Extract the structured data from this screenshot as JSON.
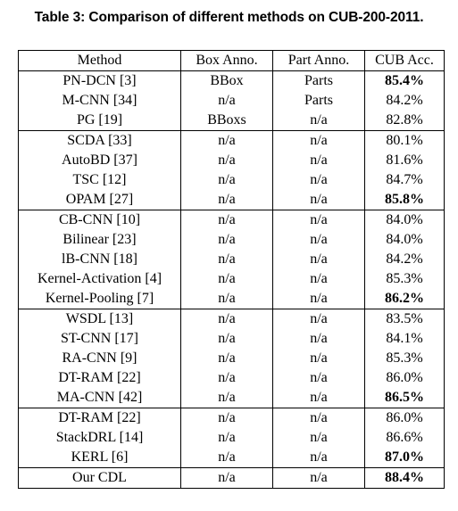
{
  "caption": "Table 3: Comparison of different methods on CUB-200-2011.",
  "headers": [
    "Method",
    "Box Anno.",
    "Part Anno.",
    "CUB Acc."
  ],
  "groups": [
    [
      {
        "method": "PN-DCN [3]",
        "box": "BBox",
        "part": "Parts",
        "acc": "85.4%",
        "best": true
      },
      {
        "method": "M-CNN [34]",
        "box": "n/a",
        "part": "Parts",
        "acc": "84.2%",
        "best": false
      },
      {
        "method": "PG [19]",
        "box": "BBoxs",
        "part": "n/a",
        "acc": "82.8%",
        "best": false
      }
    ],
    [
      {
        "method": "SCDA [33]",
        "box": "n/a",
        "part": "n/a",
        "acc": "80.1%",
        "best": false
      },
      {
        "method": "AutoBD [37]",
        "box": "n/a",
        "part": "n/a",
        "acc": "81.6%",
        "best": false
      },
      {
        "method": "TSC [12]",
        "box": "n/a",
        "part": "n/a",
        "acc": "84.7%",
        "best": false
      },
      {
        "method": "OPAM [27]",
        "box": "n/a",
        "part": "n/a",
        "acc": "85.8%",
        "best": true
      }
    ],
    [
      {
        "method": "CB-CNN [10]",
        "box": "n/a",
        "part": "n/a",
        "acc": "84.0%",
        "best": false
      },
      {
        "method": "Bilinear [23]",
        "box": "n/a",
        "part": "n/a",
        "acc": "84.0%",
        "best": false
      },
      {
        "method": "lB-CNN [18]",
        "box": "n/a",
        "part": "n/a",
        "acc": "84.2%",
        "best": false
      },
      {
        "method": "Kernel-Activation [4]",
        "box": "n/a",
        "part": "n/a",
        "acc": "85.3%",
        "best": false
      },
      {
        "method": "Kernel-Pooling [7]",
        "box": "n/a",
        "part": "n/a",
        "acc": "86.2%",
        "best": true
      }
    ],
    [
      {
        "method": "WSDL [13]",
        "box": "n/a",
        "part": "n/a",
        "acc": "83.5%",
        "best": false
      },
      {
        "method": "ST-CNN [17]",
        "box": "n/a",
        "part": "n/a",
        "acc": "84.1%",
        "best": false
      },
      {
        "method": "RA-CNN [9]",
        "box": "n/a",
        "part": "n/a",
        "acc": "85.3%",
        "best": false
      },
      {
        "method": "DT-RAM [22]",
        "box": "n/a",
        "part": "n/a",
        "acc": "86.0%",
        "best": false
      },
      {
        "method": "MA-CNN [42]",
        "box": "n/a",
        "part": "n/a",
        "acc": "86.5%",
        "best": true
      }
    ],
    [
      {
        "method": "DT-RAM [22]",
        "box": "n/a",
        "part": "n/a",
        "acc": "86.0%",
        "best": false
      },
      {
        "method": "StackDRL [14]",
        "box": "n/a",
        "part": "n/a",
        "acc": "86.6%",
        "best": false
      },
      {
        "method": "KERL [6]",
        "box": "n/a",
        "part": "n/a",
        "acc": "87.0%",
        "best": true
      }
    ],
    [
      {
        "method": "Our CDL",
        "box": "n/a",
        "part": "n/a",
        "acc": "88.4%",
        "best": true
      }
    ]
  ]
}
